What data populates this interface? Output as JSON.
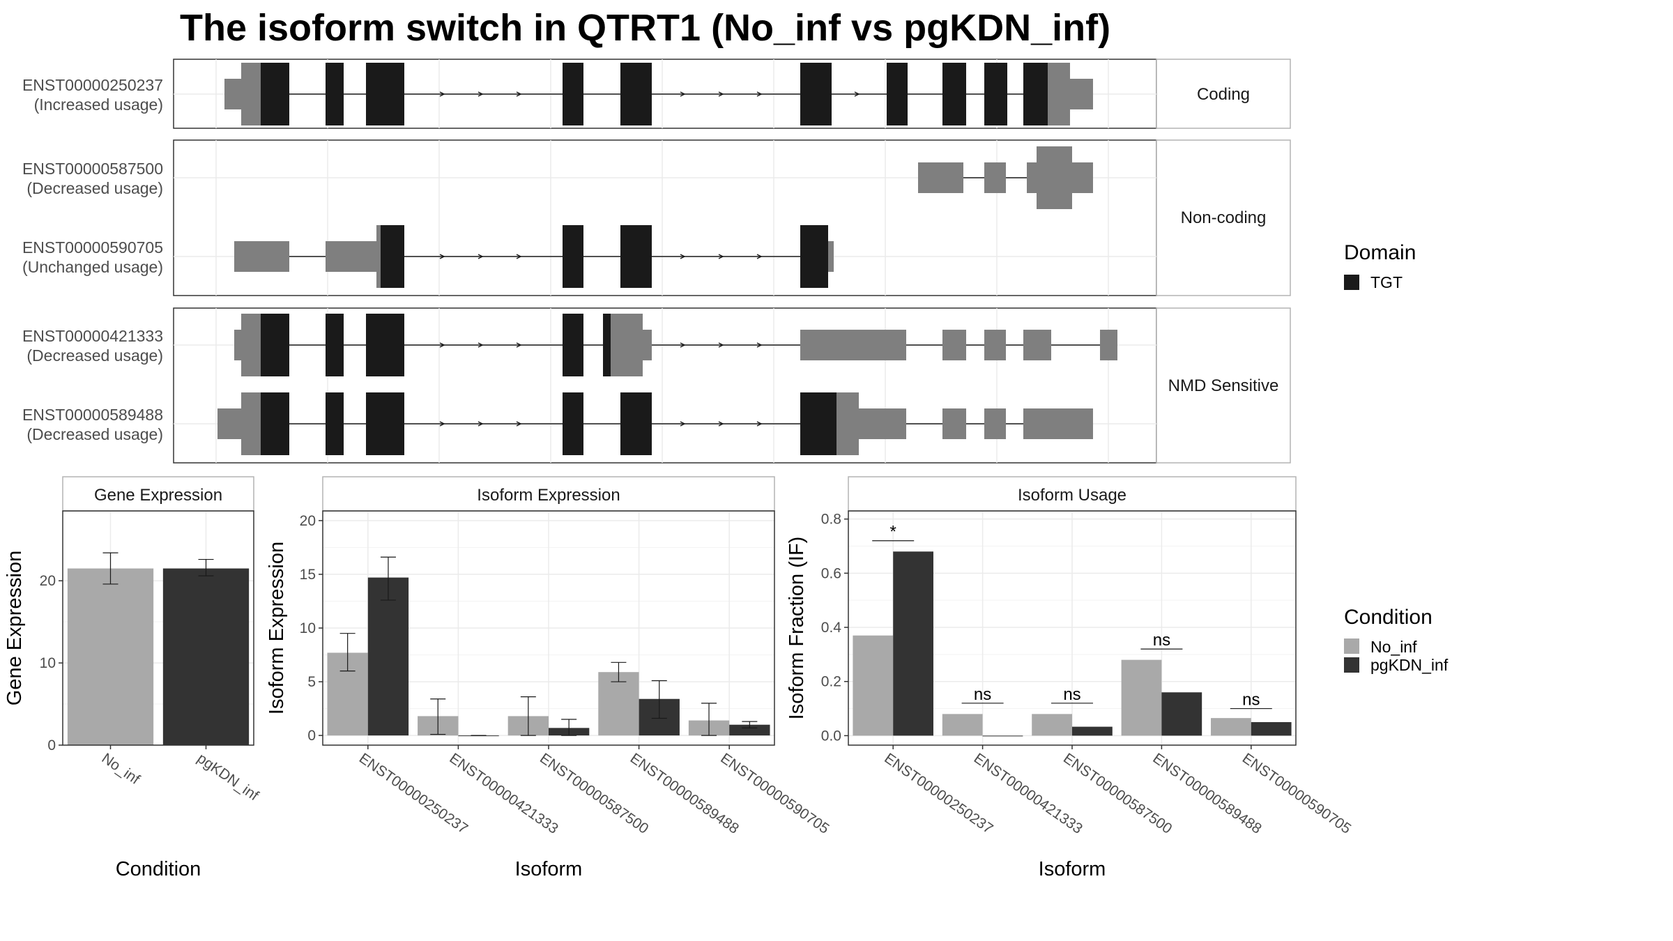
{
  "title": "The isoform switch in QTRT1 (No_inf vs pgKDN_inf)",
  "colors": {
    "utr": "#7f7f7f",
    "cds": "#1a1a1a",
    "no_inf": "#a9a9a9",
    "pgkdn_inf": "#333333",
    "panel_border": "#333333",
    "strip_border": "#b3b3b3",
    "grid": "#ebebeb"
  },
  "structure": {
    "groups": [
      {
        "label": "Coding",
        "transcripts": [
          {
            "id": "ENST00000250237",
            "usage": "(Increased usage)"
          }
        ]
      },
      {
        "label": "Non-coding",
        "transcripts": [
          {
            "id": "ENST00000587500",
            "usage": "(Decreased usage)"
          },
          {
            "id": "ENST00000590705",
            "usage": "(Unchanged usage)"
          }
        ]
      },
      {
        "label": "NMD Sensitive",
        "transcripts": [
          {
            "id": "ENST00000421333",
            "usage": "(Decreased usage)"
          },
          {
            "id": "ENST00000589488",
            "usage": "(Decreased usage)"
          }
        ]
      }
    ]
  },
  "legends": {
    "domain": {
      "title": "Domain",
      "items": [
        "TGT"
      ]
    },
    "condition": {
      "title": "Condition",
      "items": [
        "No_inf",
        "pgKDN_inf"
      ]
    }
  },
  "chart_data": [
    {
      "type": "bar",
      "panel_title": "Gene Expression",
      "xlabel": "Condition",
      "ylabel": "Gene Expression",
      "ylim": [
        0,
        28.5
      ],
      "yticks": [
        0,
        10,
        20
      ],
      "categories": [
        "No_inf",
        "pgKDN_inf"
      ],
      "values": [
        21.5,
        21.5
      ],
      "error_low": [
        19.6,
        20.6
      ],
      "error_high": [
        23.4,
        22.6
      ]
    },
    {
      "type": "bar",
      "panel_title": "Isoform Expression",
      "xlabel": "Isoform",
      "ylabel": "Isoform Expression",
      "ylim": [
        -0.9,
        20.9
      ],
      "yticks": [
        0,
        5,
        10,
        15,
        20
      ],
      "categories": [
        "ENST00000250237",
        "ENST00000421333",
        "ENST00000587500",
        "ENST00000589488",
        "ENST00000590705"
      ],
      "series": [
        {
          "name": "No_inf",
          "values": [
            7.7,
            1.8,
            1.8,
            5.9,
            1.4
          ],
          "error_low": [
            6.0,
            0.1,
            0.0,
            5.0,
            0.0
          ],
          "error_high": [
            9.5,
            3.4,
            3.6,
            6.8,
            3.0
          ]
        },
        {
          "name": "pgKDN_inf",
          "values": [
            14.7,
            0.0,
            0.7,
            3.4,
            1.0
          ],
          "error_low": [
            12.6,
            0.0,
            0.0,
            1.6,
            0.7
          ],
          "error_high": [
            16.6,
            0.0,
            1.5,
            5.1,
            1.3
          ]
        }
      ]
    },
    {
      "type": "bar",
      "panel_title": "Isoform Usage",
      "xlabel": "Isoform",
      "ylabel": "Isoform Fraction (IF)",
      "ylim": [
        -0.035,
        0.83
      ],
      "yticks": [
        0.0,
        0.2,
        0.4,
        0.6,
        0.8
      ],
      "categories": [
        "ENST00000250237",
        "ENST00000421333",
        "ENST00000587500",
        "ENST00000589488",
        "ENST00000590705"
      ],
      "series": [
        {
          "name": "No_inf",
          "values": [
            0.37,
            0.08,
            0.08,
            0.28,
            0.065
          ]
        },
        {
          "name": "pgKDN_inf",
          "values": [
            0.68,
            0.0,
            0.033,
            0.16,
            0.05
          ]
        }
      ],
      "annotations": [
        {
          "category": "ENST00000250237",
          "label": "*",
          "y": 0.72
        },
        {
          "category": "ENST00000421333",
          "label": "ns",
          "y": 0.12
        },
        {
          "category": "ENST00000587500",
          "label": "ns",
          "y": 0.12
        },
        {
          "category": "ENST00000589488",
          "label": "ns",
          "y": 0.32
        },
        {
          "category": "ENST00000590705",
          "label": "ns",
          "y": 0.1
        }
      ]
    }
  ]
}
